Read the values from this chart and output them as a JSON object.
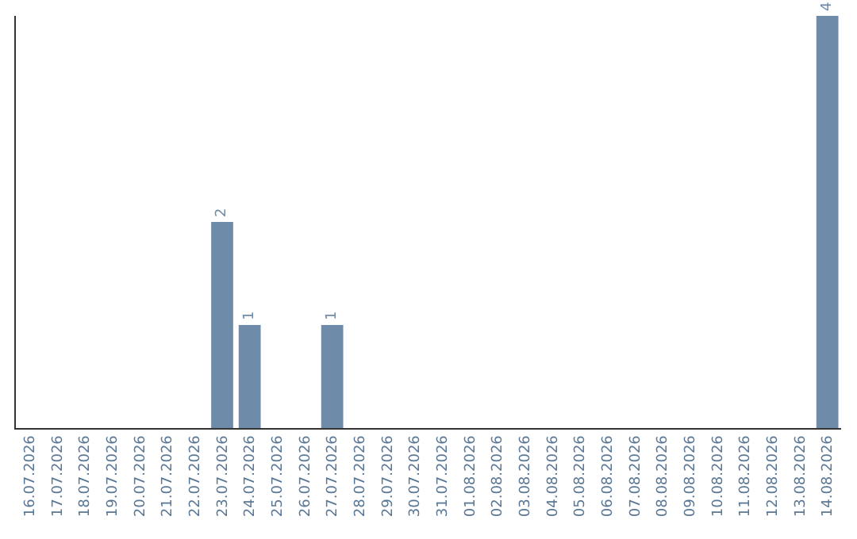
{
  "chart_data": {
    "type": "bar",
    "categories": [
      "16.07.2026",
      "17.07.2026",
      "18.07.2026",
      "19.07.2026",
      "20.07.2026",
      "21.07.2026",
      "22.07.2026",
      "23.07.2026",
      "24.07.2026",
      "25.07.2026",
      "26.07.2026",
      "27.07.2026",
      "28.07.2026",
      "29.07.2026",
      "30.07.2026",
      "31.07.2026",
      "01.08.2026",
      "02.08.2026",
      "03.08.2026",
      "04.08.2026",
      "05.08.2026",
      "06.08.2026",
      "07.08.2026",
      "08.08.2026",
      "09.08.2026",
      "10.08.2026",
      "11.08.2026",
      "12.08.2026",
      "13.08.2026",
      "14.08.2026"
    ],
    "values": [
      0,
      0,
      0,
      0,
      0,
      0,
      0,
      2,
      1,
      0,
      0,
      1,
      0,
      0,
      0,
      0,
      0,
      0,
      0,
      0,
      0,
      0,
      0,
      0,
      0,
      0,
      0,
      0,
      0,
      4
    ],
    "value_labels": [
      null,
      null,
      null,
      null,
      null,
      null,
      null,
      "2",
      "1",
      null,
      null,
      "1",
      null,
      null,
      null,
      null,
      null,
      null,
      null,
      null,
      null,
      null,
      null,
      null,
      null,
      null,
      null,
      null,
      null,
      "4"
    ],
    "color": "#6e8caa",
    "ylim": [
      0,
      4
    ],
    "tick_labels": "x",
    "legend": false
  }
}
